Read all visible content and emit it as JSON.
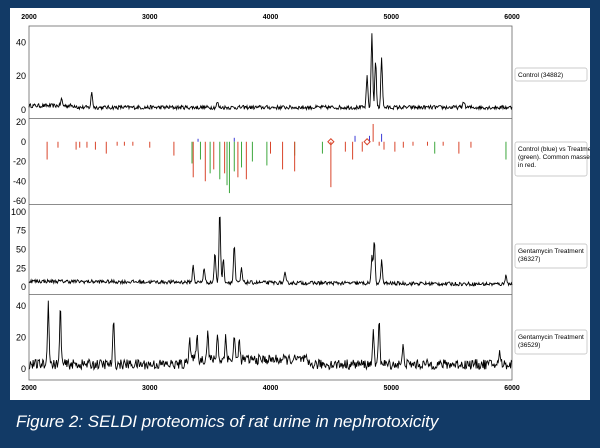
{
  "caption": "Figure 2: SELDI proteomics of rat urine in nephrotoxicity",
  "colors": {
    "frame": "#123a66",
    "trace": "#000000",
    "control": "#3b3bd6",
    "treatment": "#3ca63c",
    "common": "#d9452b"
  },
  "chart_data": [
    {
      "type": "line",
      "title": "",
      "x_ticks": [
        "2000",
        "3000",
        "4000",
        "5000",
        "6000"
      ],
      "xlim": [
        2000,
        6000
      ],
      "ylim": [
        -3,
        48
      ],
      "y_ticks": [
        "0",
        "20",
        "40"
      ],
      "label": "Control (34882)",
      "peaks": [
        {
          "x": 2270,
          "y": 4
        },
        {
          "x": 2520,
          "y": 9
        },
        {
          "x": 3560,
          "y": 3
        },
        {
          "x": 4800,
          "y": 18
        },
        {
          "x": 4840,
          "y": 44
        },
        {
          "x": 4870,
          "y": 28
        },
        {
          "x": 4920,
          "y": 30
        },
        {
          "x": 5600,
          "y": 4
        }
      ]
    },
    {
      "type": "bar",
      "title": "",
      "ylim": [
        -60,
        20
      ],
      "y_ticks": [
        "20",
        "0",
        "-20",
        "-40",
        "-60"
      ],
      "label": "Control (blue) vs Treatment (green). Common masses in red.",
      "series": [
        {
          "name": "blue",
          "values": [
            [
              3400,
              3
            ],
            [
              3700,
              4
            ],
            [
              4700,
              6
            ],
            [
              4820,
              6
            ],
            [
              4920,
              8
            ]
          ]
        },
        {
          "name": "green",
          "values": [
            [
              3350,
              -22
            ],
            [
              3420,
              -18
            ],
            [
              3500,
              -32
            ],
            [
              3580,
              -38
            ],
            [
              3640,
              -44
            ],
            [
              3660,
              -52
            ],
            [
              3700,
              -30
            ],
            [
              3760,
              -26
            ],
            [
              3850,
              -20
            ],
            [
              3970,
              -24
            ],
            [
              4200,
              -14
            ],
            [
              4430,
              -12
            ],
            [
              5360,
              -12
            ],
            [
              5950,
              -18
            ]
          ]
        },
        {
          "name": "red",
          "values": [
            [
              2150,
              -18
            ],
            [
              2240,
              -6
            ],
            [
              2390,
              -8
            ],
            [
              2420,
              -6
            ],
            [
              2480,
              -6
            ],
            [
              2550,
              -8
            ],
            [
              2640,
              -12
            ],
            [
              2730,
              -4
            ],
            [
              2790,
              -4
            ],
            [
              2860,
              -4
            ],
            [
              3000,
              -6
            ],
            [
              3200,
              -14
            ],
            [
              3360,
              -36
            ],
            [
              3460,
              -40
            ],
            [
              3530,
              -28
            ],
            [
              3620,
              -32
            ],
            [
              3730,
              -36
            ],
            [
              3800,
              -38
            ],
            [
              4000,
              -12
            ],
            [
              4100,
              -28
            ],
            [
              4200,
              -30
            ],
            [
              4500,
              -46
            ],
            [
              4620,
              -10
            ],
            [
              4680,
              -18
            ],
            [
              4760,
              -10
            ],
            [
              4850,
              18
            ],
            [
              4900,
              -4
            ],
            [
              4940,
              -8
            ],
            [
              5030,
              -10
            ],
            [
              5100,
              -6
            ],
            [
              5180,
              -4
            ],
            [
              5300,
              -4
            ],
            [
              5430,
              -4
            ],
            [
              5560,
              -12
            ],
            [
              5660,
              -6
            ]
          ]
        }
      ]
    },
    {
      "type": "line",
      "title": "",
      "ylim": [
        -5,
        105
      ],
      "y_ticks": [
        "100",
        "75",
        "50",
        "25",
        "0"
      ],
      "label": "Gentamycin Treatment (36327)",
      "peaks": [
        {
          "x": 3360,
          "y": 22
        },
        {
          "x": 3450,
          "y": 20
        },
        {
          "x": 3540,
          "y": 40
        },
        {
          "x": 3580,
          "y": 96
        },
        {
          "x": 3610,
          "y": 30
        },
        {
          "x": 3700,
          "y": 50
        },
        {
          "x": 3760,
          "y": 18
        },
        {
          "x": 4120,
          "y": 12
        },
        {
          "x": 4840,
          "y": 35
        },
        {
          "x": 4860,
          "y": 57
        },
        {
          "x": 4920,
          "y": 30
        },
        {
          "x": 5950,
          "y": 14
        }
      ]
    },
    {
      "type": "line",
      "title": "",
      "ylim": [
        -5,
        45
      ],
      "y_ticks": [
        "40",
        "20",
        "0"
      ],
      "label": "Gentamycin Treatment (36529)",
      "peaks": [
        {
          "x": 2160,
          "y": 40
        },
        {
          "x": 2260,
          "y": 35
        },
        {
          "x": 2700,
          "y": 26
        },
        {
          "x": 3330,
          "y": 14
        },
        {
          "x": 3390,
          "y": 16
        },
        {
          "x": 3480,
          "y": 18
        },
        {
          "x": 3560,
          "y": 16
        },
        {
          "x": 3630,
          "y": 16
        },
        {
          "x": 3700,
          "y": 14
        },
        {
          "x": 3740,
          "y": 12
        },
        {
          "x": 4850,
          "y": 20
        },
        {
          "x": 4900,
          "y": 30
        },
        {
          "x": 5100,
          "y": 12
        },
        {
          "x": 5900,
          "y": 8
        }
      ]
    }
  ]
}
